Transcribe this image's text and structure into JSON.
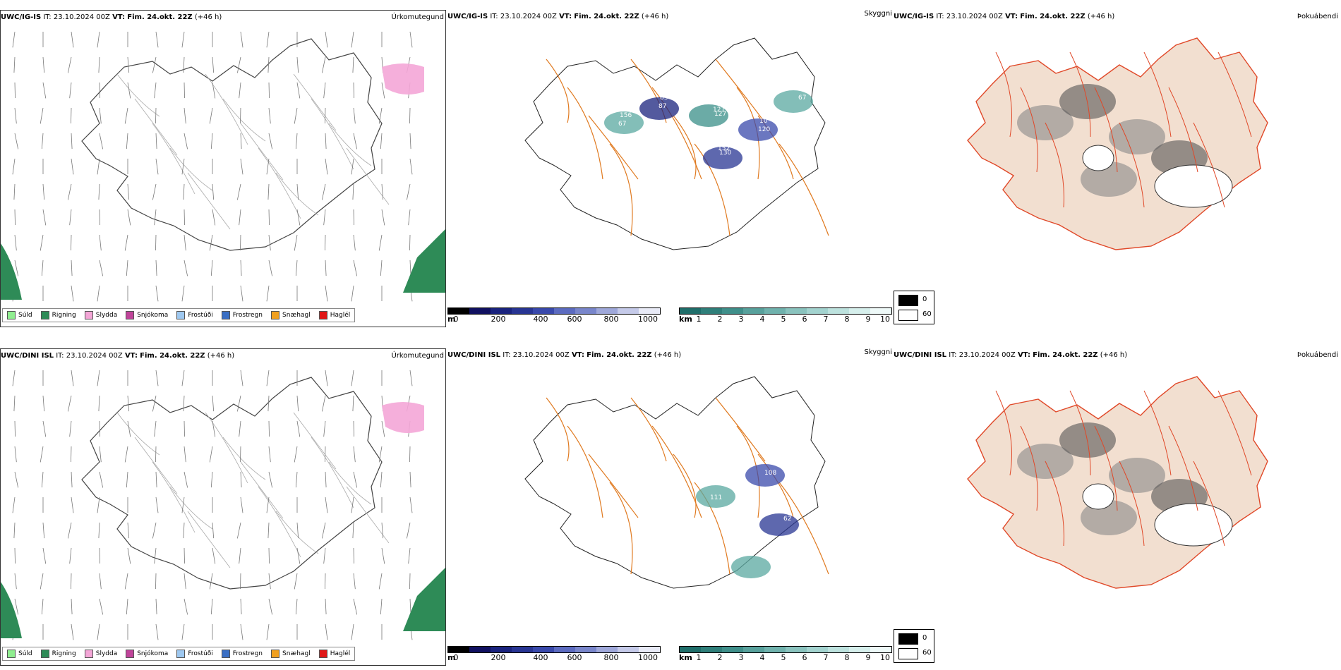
{
  "rows": [
    {
      "model": "UWC/IG-IS",
      "it_label": "IT:",
      "it_value": "23.10.2024 00Z",
      "vt_label": "VT:",
      "vt_value": "Fim. 24.okt. 22Z",
      "lead": "(+46 h)",
      "titles": {
        "precip": "Úrkomutegund",
        "cloud": "Skyggni",
        "fog": "Þokuábendi"
      },
      "cloud_labels": [
        "67",
        "87",
        "121",
        "152",
        "120",
        "67",
        "156",
        "83",
        "127",
        "130",
        "10"
      ]
    },
    {
      "model": "UWC/DINI ISL",
      "it_label": "IT:",
      "it_value": "23.10.2024 00Z",
      "vt_label": "VT:",
      "vt_value": "Fim. 24.okt. 22Z",
      "lead": "(+46 h)",
      "titles": {
        "precip": "Úrkomutegund",
        "cloud": "Skyggni",
        "fog": "Þokuábendi"
      },
      "cloud_labels": [
        "111",
        "108",
        "62"
      ]
    }
  ],
  "precip_legend": [
    {
      "label": "Súld",
      "color": "#90ee90"
    },
    {
      "label": "Rigning",
      "color": "#2e8b57"
    },
    {
      "label": "Slydda",
      "color": "#f4a6d7"
    },
    {
      "label": "Snjókoma",
      "color": "#c0449a"
    },
    {
      "label": "Frostúði",
      "color": "#9ec8f0"
    },
    {
      "label": "Frostregn",
      "color": "#3a6fc4"
    },
    {
      "label": "Snæhagl",
      "color": "#f0a020"
    },
    {
      "label": "Haglél",
      "color": "#e01818"
    }
  ],
  "height_bar": {
    "unit": "m",
    "ticks": [
      "0",
      "200",
      "400",
      "600",
      "800",
      "1000"
    ],
    "colors": [
      "#000000",
      "#101060",
      "#1a237e",
      "#283593",
      "#3949ab",
      "#5c6bc0",
      "#7986cb",
      "#9fa8da",
      "#c5cae9",
      "#e8eaf6"
    ]
  },
  "vis_bar": {
    "unit": "km",
    "ticks": [
      "1",
      "2",
      "3",
      "4",
      "5",
      "6",
      "7",
      "8",
      "9",
      "10"
    ],
    "colors": [
      "#1f6e6a",
      "#2f7f7a",
      "#3f8f8a",
      "#58a19c",
      "#70b2ad",
      "#8ac3be",
      "#a3d3cf",
      "#bde2de",
      "#d6efec",
      "#eef9f8"
    ]
  },
  "fog_scale": {
    "top": "0",
    "bottom": "60",
    "top_color": "#000000",
    "bottom_color": "#ffffff"
  }
}
